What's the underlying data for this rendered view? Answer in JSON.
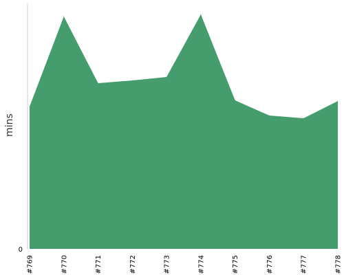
{
  "chart_data": {
    "type": "area",
    "title": "",
    "xlabel": "",
    "ylabel": "mins",
    "categories": [
      "#769",
      "#770",
      "#771",
      "#772",
      "#773",
      "#774",
      "#775",
      "#776",
      "#777",
      "#778"
    ],
    "series": [
      {
        "values": [
          207,
          338,
          241,
          245,
          250,
          341,
          216,
          194,
          190,
          215
        ]
      }
    ],
    "y_tick_labels": [
      "0"
    ],
    "ylim": [
      0,
      341
    ],
    "grid": false,
    "legend": "none",
    "colors": {
      "area_fill": "#459c6d",
      "axis": "#cccccc"
    }
  }
}
